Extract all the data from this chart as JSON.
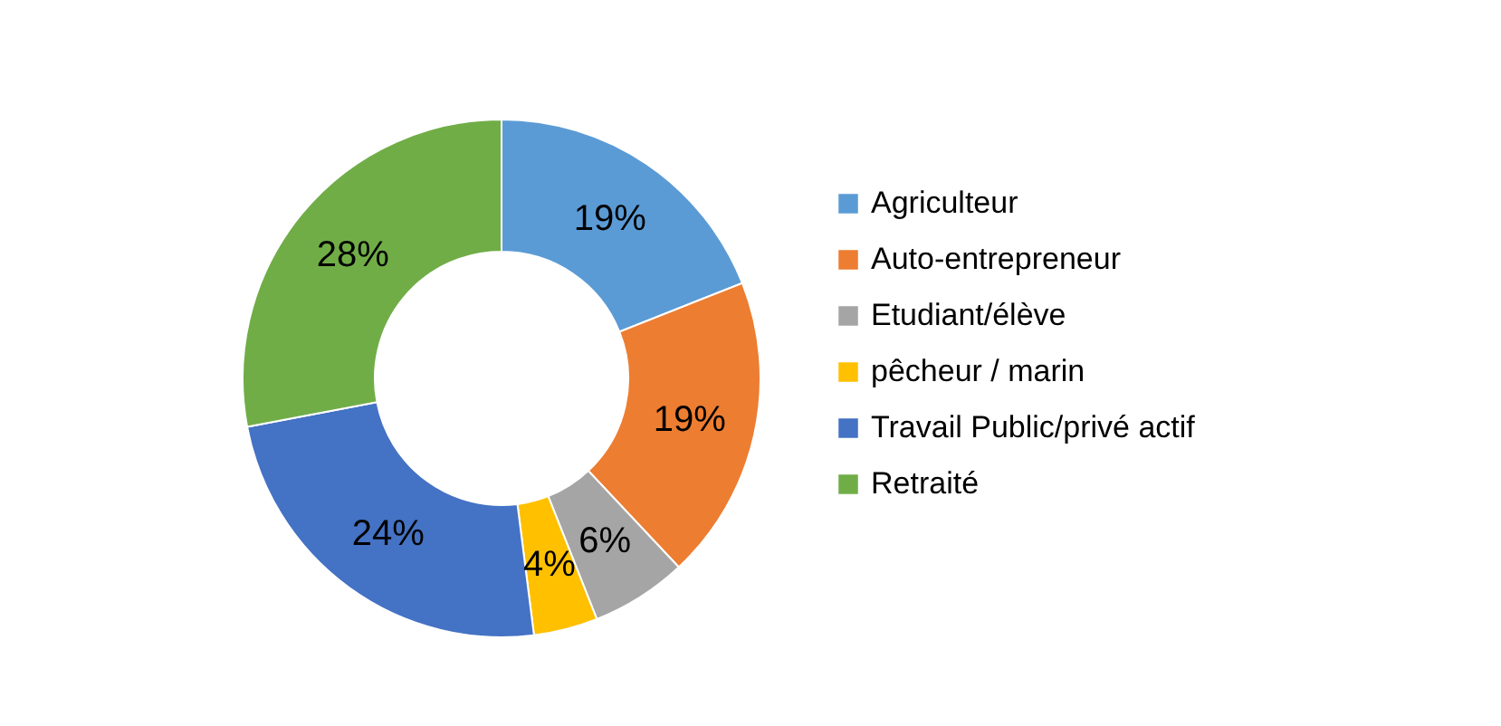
{
  "chart_data": {
    "type": "donut",
    "categories": [
      "Agriculteur",
      "Auto-entrepreneur",
      "Etudiant/élève",
      "pêcheur / marin",
      "Travail Public/privé actif",
      "Retraité"
    ],
    "values": [
      19,
      19,
      6,
      4,
      24,
      28
    ],
    "colors": [
      "#5b9bd5",
      "#ed7d31",
      "#a5a5a5",
      "#ffc000",
      "#4472c4",
      "#70ad47"
    ],
    "value_labels": [
      "19%",
      "19%",
      "6%",
      "4%",
      "24%",
      "28%"
    ],
    "legend": "right"
  }
}
